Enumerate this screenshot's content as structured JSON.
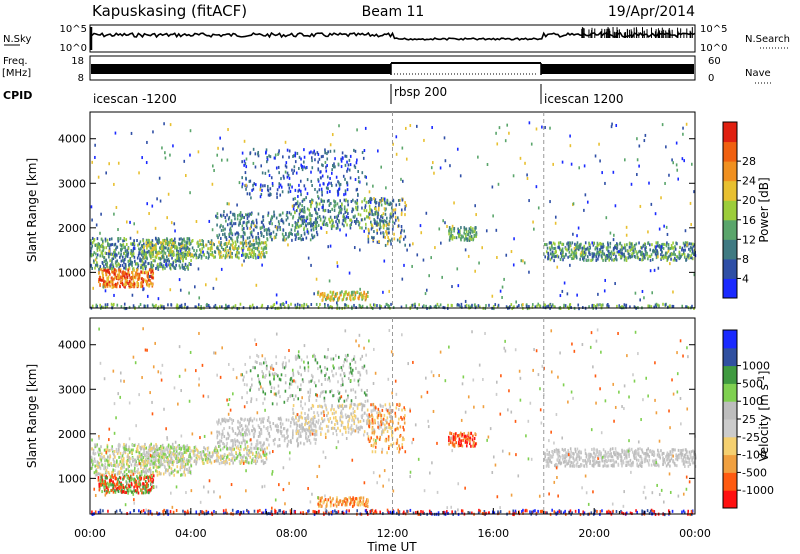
{
  "header": {
    "station": "Kapuskasing (fitACF)",
    "beam": "Beam 11",
    "date": "19/Apr/2014"
  },
  "colors": {
    "power_scale": [
      "#1a2aff",
      "#2f4fa6",
      "#3f7a82",
      "#5aa56b",
      "#9ccd3a",
      "#e8c030",
      "#f09020",
      "#f06010",
      "#e02010"
    ],
    "velocity_scale": [
      "#ff1010",
      "#ff5a10",
      "#f0a040",
      "#f5d070",
      "#cccccc",
      "#bdbdbd",
      "#7fd050",
      "#3f9a40",
      "#3050a0",
      "#1a2aff"
    ]
  },
  "chart_data": [
    {
      "type": "line",
      "name": "noise-panel",
      "left_label": "N.Sky",
      "left_ticks": [
        "10^5",
        "10^0"
      ],
      "right_label": "N.Search",
      "right_ticks": [
        "10^5",
        "10^0"
      ]
    },
    {
      "type": "bar",
      "name": "frequency-nave-panel",
      "left_label": "Freq.",
      "left_unit": "[MHz]",
      "left_ticks": [
        "18",
        "8"
      ],
      "right_label": "Nave",
      "right_ticks": [
        "60",
        "0"
      ]
    },
    {
      "type": "table",
      "name": "cpid-panel",
      "label": "CPID",
      "segments": [
        {
          "label": "icescan -1200",
          "start_hour": 0,
          "end_hour": 12
        },
        {
          "label": "rbsp 200",
          "start_hour": 12,
          "end_hour": 18
        },
        {
          "label": "icescan 1200",
          "start_hour": 18,
          "end_hour": 24
        }
      ]
    },
    {
      "type": "heatmap",
      "name": "power",
      "ylabel": "Slant Range [km]",
      "yticks": [
        1000,
        2000,
        3000,
        4000
      ],
      "ylim": [
        200,
        4600
      ],
      "colorbar_label": "Power [dB]",
      "colorbar_ticks": [
        "4",
        "8",
        "12",
        "16",
        "20",
        "24",
        "28"
      ]
    },
    {
      "type": "heatmap",
      "name": "velocity",
      "ylabel": "Slant Range [km]",
      "yticks": [
        1000,
        2000,
        3000,
        4000
      ],
      "ylim": [
        200,
        4600
      ],
      "colorbar_label": "Velocity [m s^-1]",
      "colorbar_ticks": [
        "-1000",
        "-500",
        "-100",
        "-25",
        "25",
        "100",
        "500",
        "1000"
      ],
      "xlabel": "Time UT",
      "xticks": [
        "00:00",
        "04:00",
        "08:00",
        "12:00",
        "16:00",
        "20:00",
        "00:00"
      ],
      "xlim_hours": [
        0,
        24
      ]
    }
  ]
}
